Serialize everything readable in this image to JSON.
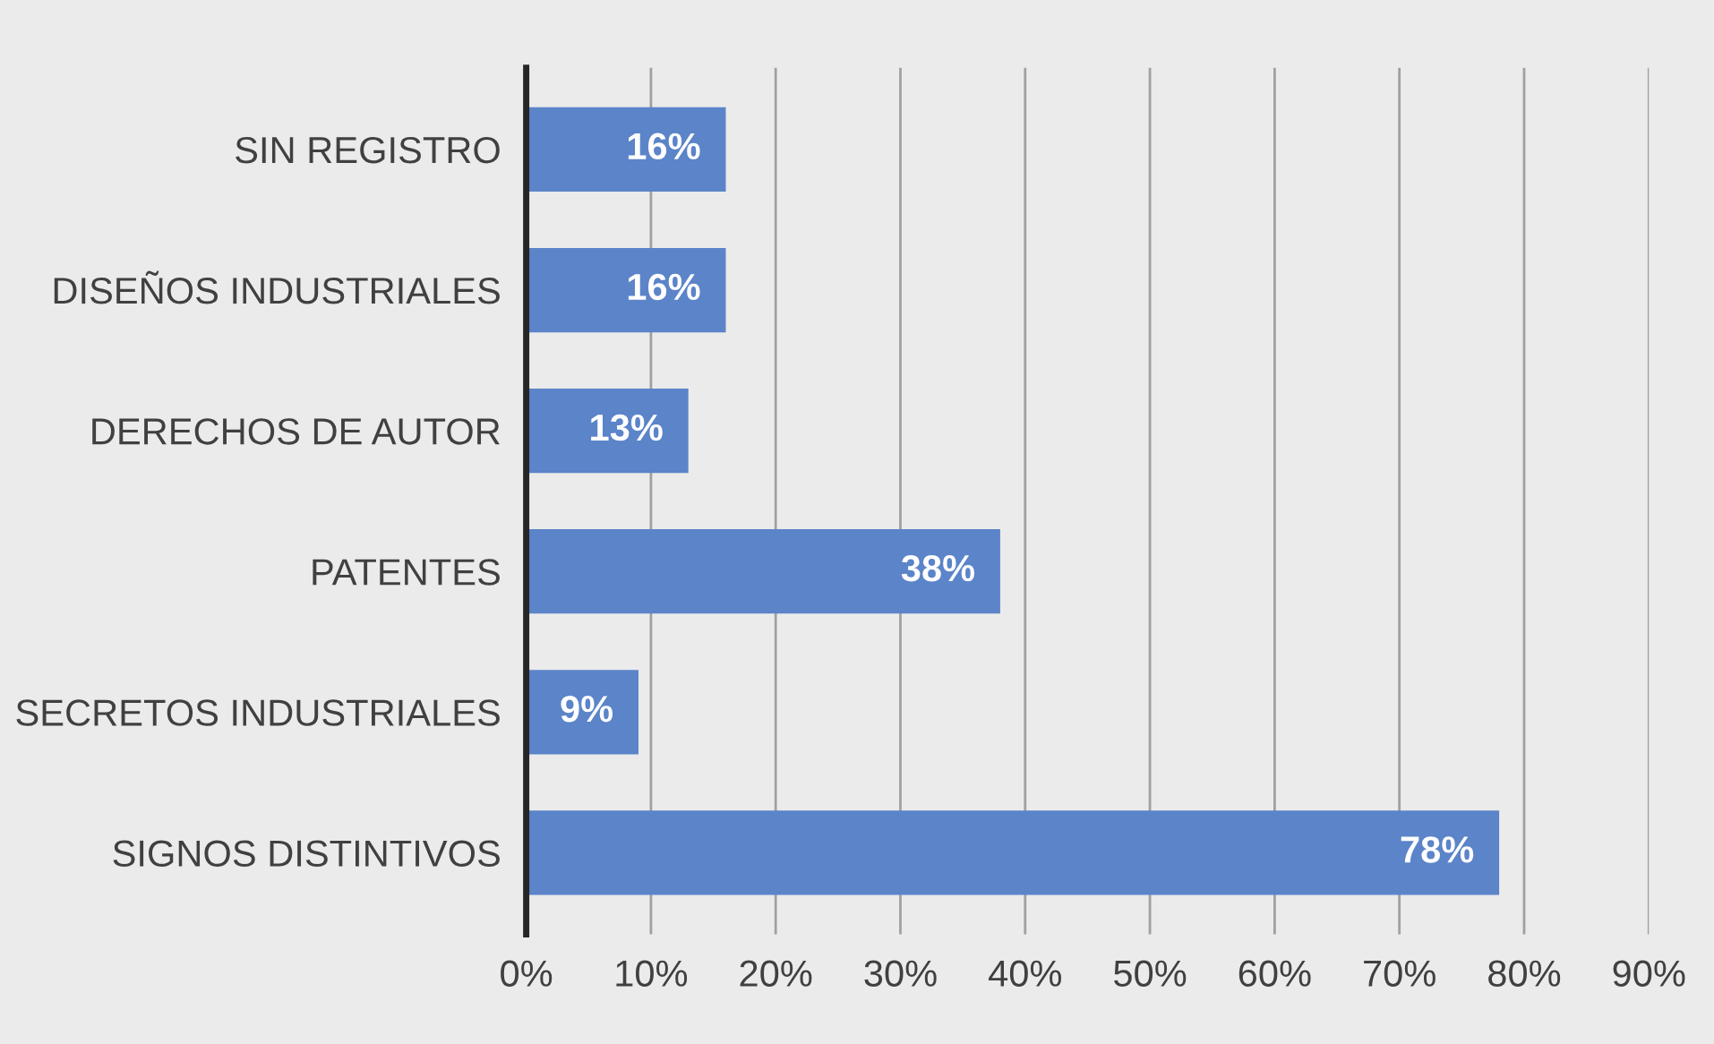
{
  "chart_data": {
    "type": "bar",
    "orientation": "horizontal",
    "categories": [
      "SIN REGISTRO",
      "DISEÑOS INDUSTRIALES",
      "DERECHOS DE AUTOR",
      "PATENTES",
      "SECRETOS INDUSTRIALES",
      "SIGNOS DISTINTIVOS"
    ],
    "values": [
      16,
      16,
      13,
      38,
      9,
      78
    ],
    "value_labels": [
      "16%",
      "16%",
      "13%",
      "38%",
      "9%",
      "78%"
    ],
    "color": "#5b84c9",
    "xlim": [
      0,
      90
    ],
    "xticks": [
      {
        "value": 0,
        "label": "0%"
      },
      {
        "value": 10,
        "label": "10%"
      },
      {
        "value": 20,
        "label": "20%"
      },
      {
        "value": 30,
        "label": "30%"
      },
      {
        "value": 40,
        "label": "40%"
      },
      {
        "value": 50,
        "label": "50%"
      },
      {
        "value": 60,
        "label": "60%"
      },
      {
        "value": 70,
        "label": "70%"
      },
      {
        "value": 80,
        "label": "80%"
      },
      {
        "value": 90,
        "label": "90%"
      }
    ],
    "grid": "x"
  }
}
